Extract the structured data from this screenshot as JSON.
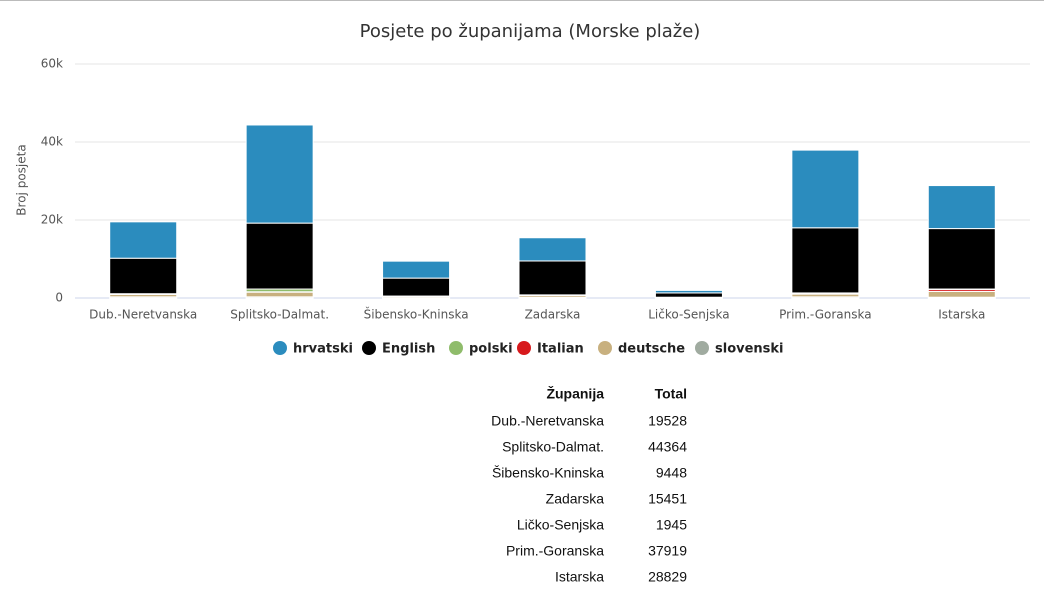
{
  "chart_data": {
    "type": "stacked_bar",
    "title": "Posjete po županijama (Morske plaže)",
    "y_label": "Broj posjeta",
    "categories": [
      "Dub.-Neretvanska",
      "Splitsko-Dalmat.",
      "Šibensko-Kninska",
      "Zadarska",
      "Ličko-Senjska",
      "Prim.-Goranska",
      "Istarska"
    ],
    "series": [
      {
        "name": "hrvatski",
        "color": "#2b8cbe",
        "values": [
          9328,
          25164,
          4348,
          5951,
          645,
          19919,
          11029
        ]
      },
      {
        "name": "English",
        "color": "#000000",
        "values": [
          9100,
          16900,
          4600,
          8700,
          1100,
          16700,
          15500
        ]
      },
      {
        "name": "polski",
        "color": "#8fbc6b",
        "values": [
          150,
          700,
          70,
          100,
          40,
          200,
          100
        ]
      },
      {
        "name": "Italian",
        "color": "#d7191c",
        "values": [
          50,
          100,
          30,
          50,
          10,
          100,
          500
        ]
      },
      {
        "name": "deutsche",
        "color": "#c8b07f",
        "values": [
          600,
          1200,
          300,
          450,
          100,
          700,
          1500
        ]
      },
      {
        "name": "slovenski",
        "color": "#a0aba0",
        "values": [
          300,
          300,
          100,
          200,
          50,
          300,
          200
        ]
      }
    ],
    "ylim": [
      0,
      60000
    ],
    "yticks": [
      0,
      {
        "value": 20000,
        "label": "20k"
      },
      {
        "value": 40000,
        "label": "40k"
      },
      {
        "value": 60000,
        "label": "60k"
      }
    ],
    "grid": true,
    "legend": "bottom"
  },
  "table": {
    "header": [
      "Županija",
      "Total"
    ],
    "rows": [
      [
        "Dub.-Neretvanska",
        "19528"
      ],
      [
        "Splitsko-Dalmat.",
        "44364"
      ],
      [
        "Šibensko-Kninska",
        "9448"
      ],
      [
        "Zadarska",
        "15451"
      ],
      [
        "Ličko-Senjska",
        "1945"
      ],
      [
        "Prim.-Goranska",
        "37919"
      ],
      [
        "Istarska",
        "28829"
      ]
    ]
  }
}
